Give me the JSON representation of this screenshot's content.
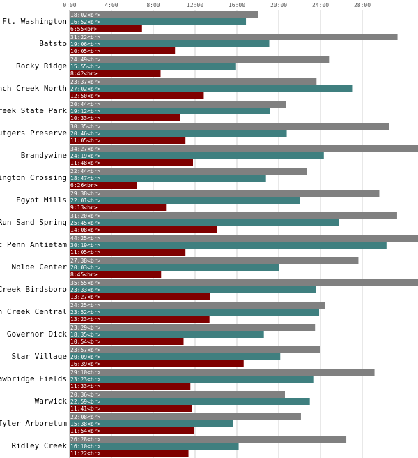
{
  "chart_data": {
    "type": "bar",
    "orientation": "horizontal",
    "title": "",
    "xlabel": "",
    "ylabel": "",
    "x_unit": "minutes",
    "xlim_minutes": [
      0,
      1800
    ],
    "x_ticks": [
      "0:00",
      "4:00",
      "8:00",
      "12:00",
      "16:00",
      "20:00",
      "24:00",
      "28:00"
    ],
    "x_tick_minutes": [
      0,
      240,
      480,
      720,
      960,
      1200,
      1440,
      1680
    ],
    "grid": "vertical",
    "legend": "none",
    "bar_label_suffix": "<br>",
    "colors": [
      "#808080",
      "#3f7f7f",
      "#7f0000"
    ],
    "categories": [
      "Ft. Washington",
      "Batsto",
      "Rocky Ridge",
      "French Creek North",
      "Marsh Creek State Park",
      "Rutgers Preserve",
      "Brandywine",
      "Washington Crossing",
      "Egypt Mills",
      "Run Sand Spring",
      "Mount Penn Antietam",
      "Nolde Center",
      "French Creek Birdsboro",
      "French Creek Central",
      "Governor Dick",
      "Star Village",
      "Strawbridge Fields",
      "Warwick",
      "Tyler Arboretum",
      "Ridley Creek"
    ],
    "series": [
      {
        "labels": [
          "18:02",
          "31:22",
          "24:49",
          "23:37",
          "20:44",
          "30:35",
          "34:27",
          "22:44",
          "29:38",
          "31:20",
          "44:25",
          "27:38",
          "35:55",
          "24:25",
          "23:29",
          "23:57",
          "29:10",
          "20:36",
          "22:08",
          "26:28"
        ],
        "values": [
          18.03,
          31.37,
          24.82,
          23.62,
          20.73,
          30.58,
          34.45,
          22.73,
          29.63,
          31.33,
          44.42,
          27.63,
          35.92,
          24.42,
          23.48,
          23.95,
          29.17,
          20.6,
          22.13,
          26.47
        ]
      },
      {
        "labels": [
          "16:52",
          "19:06",
          "15:55",
          "27:02",
          "19:12",
          "20:46",
          "24:19",
          "18:47",
          "22:01",
          "25:45",
          "30:19",
          "20:03",
          "23:33",
          "23:52",
          "18:35",
          "20:09",
          "23:23",
          "22:59",
          "15:38",
          "16:10"
        ],
        "values": [
          16.87,
          19.1,
          15.92,
          27.03,
          19.2,
          20.77,
          24.32,
          18.78,
          22.02,
          25.75,
          30.32,
          20.05,
          23.55,
          23.87,
          18.58,
          20.15,
          23.38,
          22.98,
          15.63,
          16.17
        ]
      },
      {
        "labels": [
          "6:55",
          "10:05",
          "8:42",
          "12:50",
          "10:33",
          "11:05",
          "11:48",
          "6:26",
          "9:13",
          "14:08",
          "11:05",
          "8:45",
          "13:27",
          "13:23",
          "10:54",
          "16:39",
          "11:33",
          "11:41",
          "11:54",
          "11:22"
        ],
        "values": [
          6.92,
          10.08,
          8.7,
          12.83,
          10.55,
          11.08,
          11.8,
          6.43,
          9.22,
          14.13,
          11.08,
          8.75,
          13.45,
          13.38,
          10.9,
          16.65,
          11.55,
          11.68,
          11.9,
          11.37
        ]
      }
    ]
  }
}
